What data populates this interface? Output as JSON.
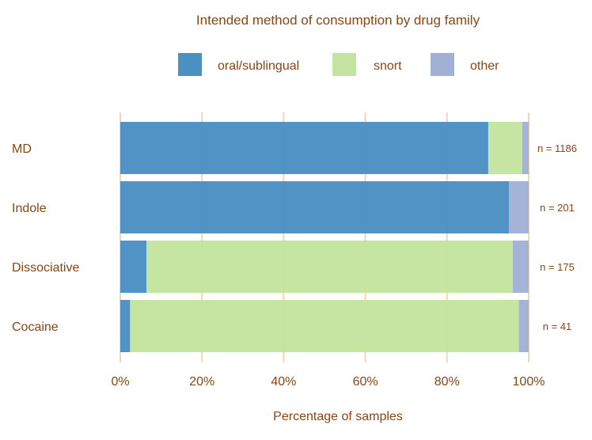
{
  "chart_data": {
    "type": "bar",
    "orientation": "horizontal",
    "stacked": true,
    "title": "Intended method of consumption by drug family",
    "xlabel": "Percentage of samples",
    "ylabel": "",
    "xlim": [
      0,
      100
    ],
    "x_ticks": [
      "0%",
      "20%",
      "40%",
      "60%",
      "80%",
      "100%"
    ],
    "grid": "vertical",
    "legend_position": "top",
    "categories": [
      "MD",
      "Indole",
      "Dissociative",
      "Cocaine"
    ],
    "annotations": [
      "n = 1186",
      "n = 201",
      "n = 175",
      "n = 41"
    ],
    "series": [
      {
        "name": "oral/sublingual",
        "color": "#4A90C2",
        "values": [
          90.1,
          95.2,
          6.4,
          2.4
        ]
      },
      {
        "name": "snort",
        "color": "#C3E4A0",
        "values": [
          8.3,
          0,
          89.7,
          95.2
        ]
      },
      {
        "name": "other",
        "color": "#A1B1D5",
        "values": [
          1.6,
          4.8,
          3.9,
          2.4
        ]
      }
    ],
    "colors": {
      "text": "#8B4513",
      "grid": "#F0D7B8"
    }
  }
}
